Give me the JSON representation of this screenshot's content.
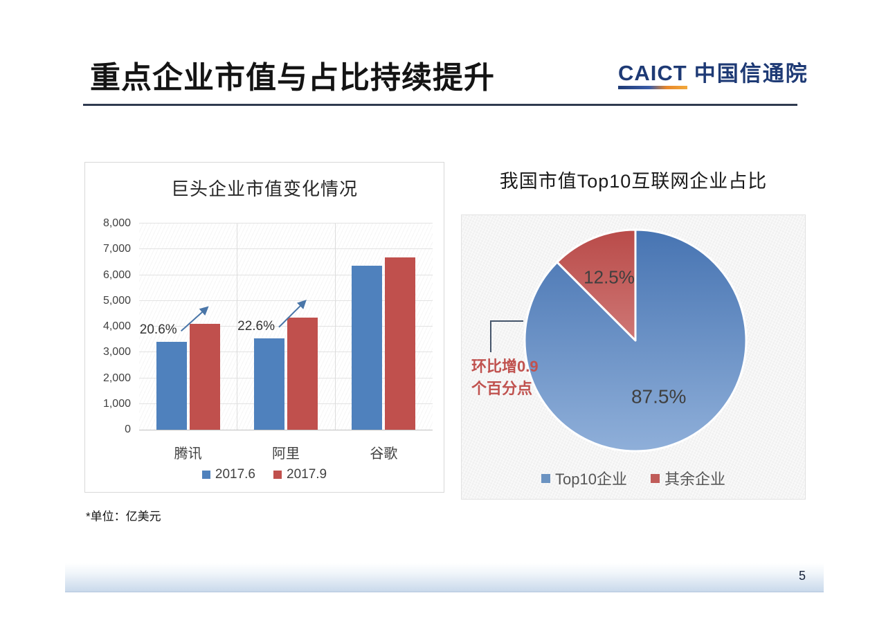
{
  "slide": {
    "title": "重点企业市值与占比持续提升",
    "page_number": "5",
    "footnote": "*单位：亿美元"
  },
  "logo": {
    "acronym": "CAICT",
    "name": "中国信通院"
  },
  "colors": {
    "title_rule": "#2f3a4f",
    "series_blue": "#4f81bd",
    "series_red": "#c0504d",
    "annotation_arrow": "#4a76a8",
    "annotation_text_red": "#c0524f",
    "connector": "#44546a",
    "footer_band": "#c9d9eb"
  },
  "chart_data": [
    {
      "type": "bar",
      "title": "巨头企业市值变化情况",
      "categories": [
        "腾讯",
        "阿里",
        "谷歌"
      ],
      "series": [
        {
          "name": "2017.6",
          "color": "#4f81bd",
          "values": [
            3400,
            3550,
            6350
          ]
        },
        {
          "name": "2017.9",
          "color": "#c0504d",
          "values": [
            4100,
            4350,
            6690
          ]
        }
      ],
      "ylim": [
        0,
        8000
      ],
      "ytick_step": 1000,
      "grid": true,
      "legend_position": "bottom",
      "unit_note": "*单位：亿美元",
      "annotations": [
        {
          "category_index": 0,
          "label": "20.6%"
        },
        {
          "category_index": 1,
          "label": "22.6%"
        }
      ]
    },
    {
      "type": "pie",
      "title": "我国市值Top10互联网企业占比",
      "slices": [
        {
          "label": "Top10企业",
          "value": 87.5,
          "display": "87.5%",
          "color_top": "#4774b2",
          "color_bottom": "#8fafd9",
          "legend_color": "#6b93c1"
        },
        {
          "label": "其余企业",
          "value": 12.5,
          "display": "12.5%",
          "color_top": "#b94b49",
          "color_bottom": "#e4a3a1",
          "legend_color": "#c05c59"
        }
      ],
      "start_angle_deg": 0,
      "direction": "clockwise",
      "legend_position": "bottom",
      "annotation": "环比增0.9个百分点",
      "annotation_lines": [
        "环比增0.9",
        "个百分点"
      ]
    }
  ]
}
